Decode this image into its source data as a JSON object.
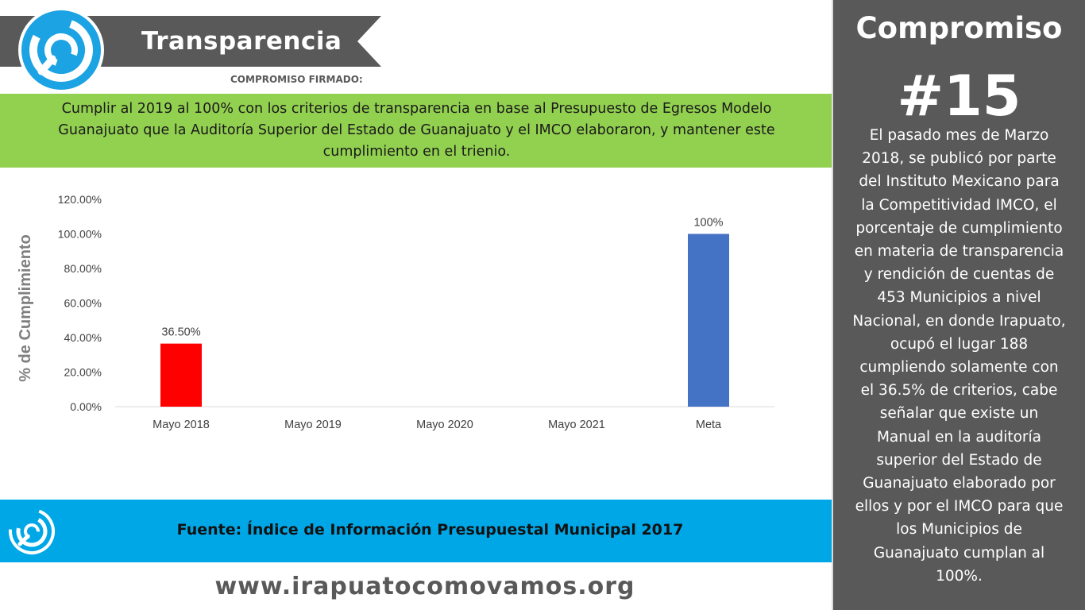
{
  "header": {
    "title": "Transparencia",
    "subtitle": "COMPROMISO FIRMADO:"
  },
  "commitment_text": "Cumplir al 2019 al 100% con los criterios de transparencia en base al Presupuesto de Egresos Modelo Guanajuato que la Auditoría Superior del Estado de Guanajuato y el IMCO elaboraron, y mantener este cumplimiento en el trienio.",
  "chart_data": {
    "type": "bar",
    "title": "",
    "xlabel": "",
    "ylabel": "% de Cumplimiento",
    "categories": [
      "Mayo 2018",
      "Mayo 2019",
      "Mayo 2020",
      "Mayo 2021",
      "Meta"
    ],
    "values": [
      36.5,
      0,
      0,
      0,
      100
    ],
    "data_labels": [
      "36.50%",
      "",
      "",
      "",
      "100%"
    ],
    "bar_colors": [
      "#ff0000",
      "#4472c4",
      "#4472c4",
      "#4472c4",
      "#4472c4"
    ],
    "ylim": [
      0,
      120
    ],
    "yticks": [
      0,
      20,
      40,
      60,
      80,
      100,
      120
    ],
    "ytick_labels": [
      "0.00%",
      "20.00%",
      "40.00%",
      "60.00%",
      "80.00%",
      "100.00%",
      "120.00%"
    ],
    "grid": false,
    "legend": "none"
  },
  "source": {
    "text": "Fuente:  Índice de Información Presupuestal Municipal 2017"
  },
  "website": "www.irapuatocomovamos.org",
  "panel": {
    "title": "Compromiso",
    "number": "#15",
    "body": "El pasado mes de Marzo 2018, se publicó por parte del Instituto Mexicano para la Competitividad IMCO, el porcentaje de cumplimiento en materia de transparencia y rendición de cuentas de 453 Municipios a nivel Nacional, en donde Irapuato, ocupó el lugar 188 cumpliendo solamente con el 36.5% de criterios, cabe señalar que existe un Manual en la auditoría superior del Estado de Guanajuato elaborado por ellos y por el IMCO para que los Municipios de Guanajuato cumplan al 100%."
  },
  "colors": {
    "green_band": "#92d050",
    "blue_band": "#00a7e7",
    "panel_gray": "#595959",
    "banner_gray": "#595959",
    "logo_blue": "#1ba3e3"
  },
  "icons": {
    "logo": "ring-logo-icon"
  }
}
